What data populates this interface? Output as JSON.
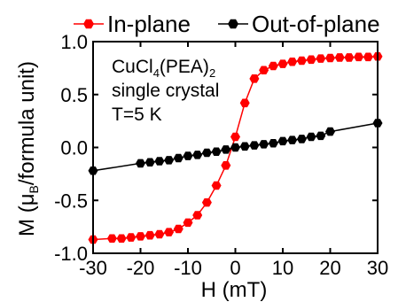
{
  "chart_data": {
    "type": "line",
    "xlabel": "H (mT)",
    "ylabel": "M (μB/formula unit)",
    "ylabel_parts": {
      "before": "M (μ",
      "sub": "B",
      "after": "/formula unit)"
    },
    "xlim": [
      -30,
      30
    ],
    "ylim": [
      -1.0,
      1.0
    ],
    "xticks": [
      -30,
      -20,
      -10,
      0,
      10,
      20,
      30
    ],
    "xtick_labels": [
      "-30",
      "-20",
      "-10",
      "0",
      "10",
      "20",
      "30"
    ],
    "yticks": [
      -1.0,
      -0.5,
      0.0,
      0.5,
      1.0
    ],
    "ytick_labels": [
      "-1.0",
      "-0.5",
      "0.0",
      "0.5",
      "1.0"
    ],
    "grid": false,
    "legend_position": "top",
    "annotation": {
      "line1_parts": [
        "CuCl",
        "4",
        "(PEA)",
        "2"
      ],
      "line2": "single crystal",
      "line3": "T=5 K"
    },
    "series": [
      {
        "name": "In-plane",
        "color": "#ff0000",
        "marker": "hexagon",
        "x": [
          -30,
          -26,
          -24,
          -22,
          -20,
          -18,
          -16,
          -14,
          -12,
          -10,
          -8,
          -6,
          -4,
          -2,
          0,
          2,
          4,
          6,
          8,
          10,
          12,
          14,
          16,
          18,
          20,
          22,
          24,
          26,
          28,
          30
        ],
        "y": [
          -0.87,
          -0.86,
          -0.86,
          -0.85,
          -0.84,
          -0.83,
          -0.82,
          -0.8,
          -0.77,
          -0.71,
          -0.64,
          -0.52,
          -0.36,
          -0.17,
          0.1,
          0.42,
          0.65,
          0.73,
          0.77,
          0.79,
          0.81,
          0.82,
          0.83,
          0.84,
          0.845,
          0.85,
          0.85,
          0.855,
          0.855,
          0.86
        ]
      },
      {
        "name": "Out-of-plane",
        "color": "#000000",
        "marker": "hexagon",
        "x": [
          -30,
          -20,
          -18,
          -16,
          -14,
          -12,
          -10,
          -8,
          -6,
          -4,
          -2,
          0,
          2,
          4,
          6,
          8,
          10,
          12,
          14,
          16,
          18,
          20,
          30
        ],
        "y": [
          -0.22,
          -0.15,
          -0.14,
          -0.13,
          -0.12,
          -0.1,
          -0.08,
          -0.07,
          -0.05,
          -0.04,
          -0.02,
          0.0,
          0.01,
          0.02,
          0.03,
          0.04,
          0.06,
          0.07,
          0.08,
          0.1,
          0.11,
          0.15,
          0.23
        ]
      }
    ]
  }
}
